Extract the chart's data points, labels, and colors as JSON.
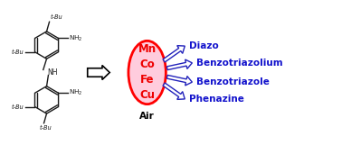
{
  "background_color": "#ffffff",
  "arrow_edge_color": "#2222bb",
  "ellipse_face_color": "#ffccdd",
  "ellipse_edge_color": "#ff0000",
  "ellipse_text_color": "#ee0000",
  "ellipse_metals": [
    "Mn",
    "Co",
    "Fe",
    "Cu"
  ],
  "ellipse_label": "Air",
  "products": [
    "Diazo",
    "Benzotriazolium",
    "Benzotriazole",
    "Phenazine"
  ],
  "product_color": "#1111cc",
  "structure_color": "#1a1a1a",
  "figsize": [
    3.78,
    1.61
  ],
  "dpi": 100,
  "xlim": [
    0,
    10
  ],
  "ylim": [
    0,
    4.2
  ]
}
